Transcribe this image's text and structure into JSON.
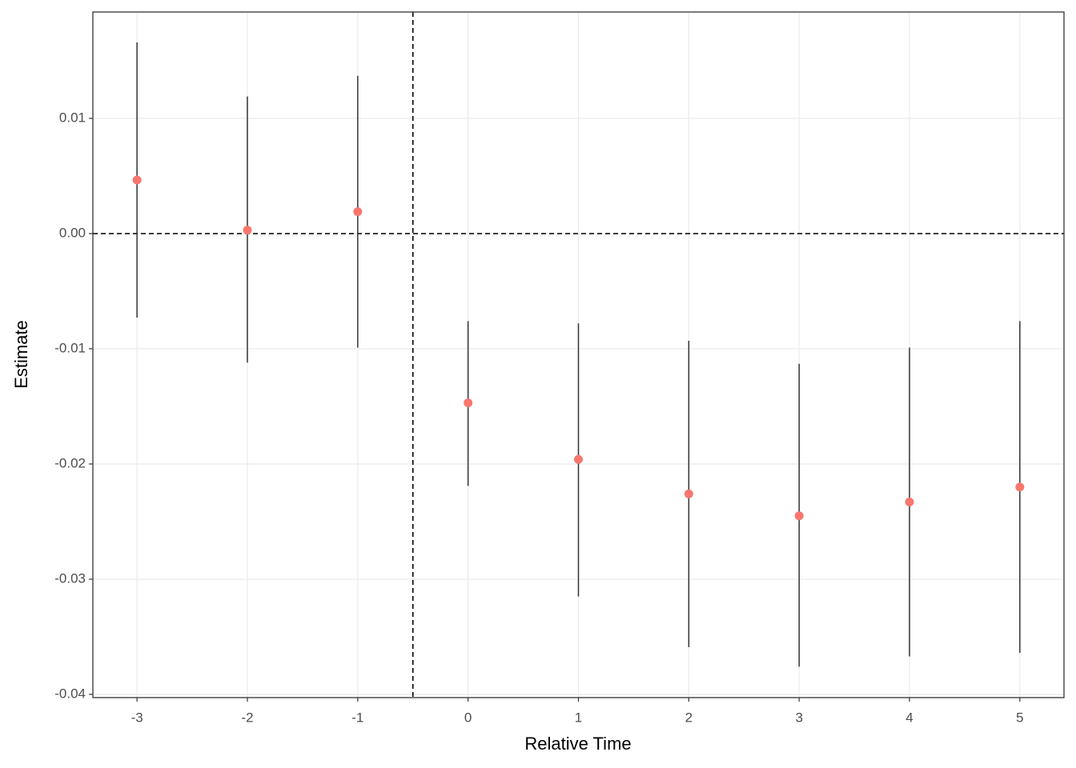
{
  "chart_data": {
    "type": "errorbar",
    "x_label": "Relative Time",
    "y_label": "Estimate",
    "x": [
      -3,
      -2,
      -1,
      0,
      1,
      2,
      3,
      4,
      5
    ],
    "series": [
      {
        "color": "#f8766d",
        "values": [
          0.00465,
          0.0003,
          0.0019,
          -0.0147,
          -0.0196,
          -0.0226,
          -0.0245,
          -0.0233,
          -0.022
        ],
        "lower": [
          -0.0073,
          -0.0112,
          -0.0099,
          -0.0219,
          -0.0315,
          -0.0359,
          -0.0376,
          -0.0367,
          -0.0364
        ],
        "upper": [
          0.0166,
          0.0119,
          0.0137,
          -0.0076,
          -0.0078,
          -0.0093,
          -0.0113,
          -0.0099,
          -0.0076
        ]
      }
    ],
    "xlim": [
      -3.4,
      5.4
    ],
    "ylim": [
      -0.04028,
      0.019236
    ],
    "xticks": [
      -3,
      -2,
      -1,
      0,
      1,
      2,
      3,
      4,
      5
    ],
    "yticks": [
      -0.04,
      -0.03,
      -0.02,
      -0.01,
      {
        "value": 0,
        "label": "0.00"
      },
      0.01
    ],
    "hline": 0,
    "vline": -0.5,
    "grid": true
  }
}
